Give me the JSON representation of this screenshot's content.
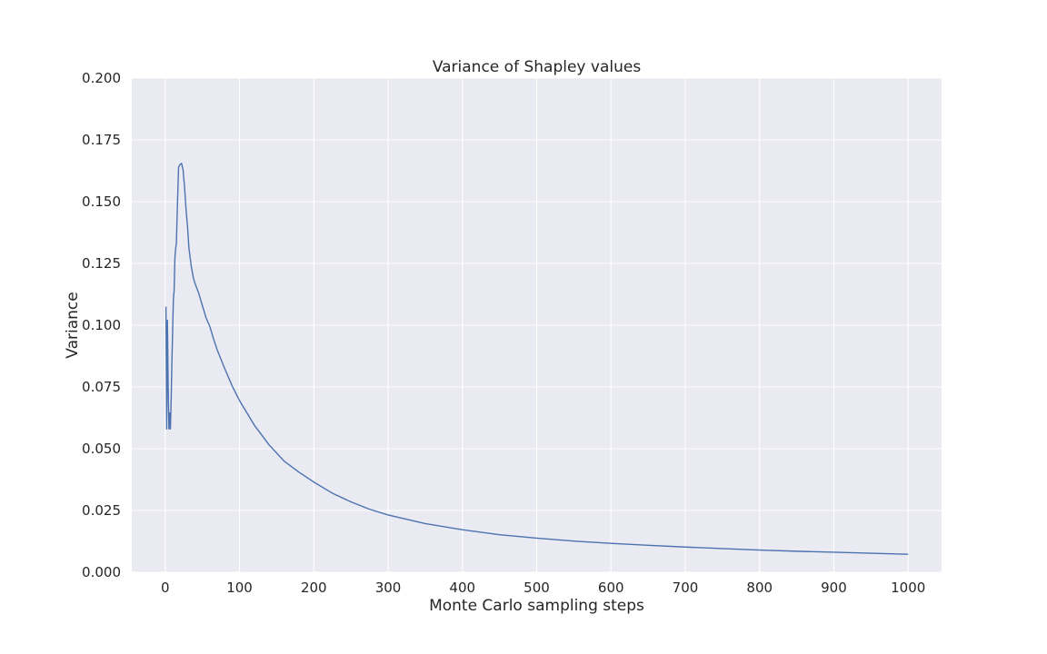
{
  "chart_data": {
    "type": "line",
    "title": "Variance of Shapley values",
    "xlabel": "Monte Carlo sampling steps",
    "ylabel": "Variance",
    "xlim": [
      -45,
      1045
    ],
    "ylim": [
      0,
      0.2
    ],
    "xticks": [
      0,
      100,
      200,
      300,
      400,
      500,
      600,
      700,
      800,
      900,
      1000
    ],
    "yticks": [
      0,
      0.025,
      0.05,
      0.075,
      0.1,
      0.125,
      0.15,
      0.175,
      0.2
    ],
    "ytick_labels": [
      "0.000",
      "0.025",
      "0.050",
      "0.075",
      "0.100",
      "0.125",
      "0.150",
      "0.175",
      "0.200"
    ],
    "grid": true,
    "background": "#eaeaf2",
    "line_color": "#4c72b0",
    "series": [
      {
        "x": [
          1,
          2,
          3,
          4,
          5,
          6,
          7,
          8,
          9,
          10,
          11,
          12,
          13,
          14,
          15,
          16,
          18,
          20,
          22,
          24,
          26,
          28,
          30,
          32,
          35,
          38,
          40,
          45,
          50,
          55,
          60,
          65,
          70,
          80,
          90,
          100,
          120,
          140,
          160,
          180,
          200,
          225,
          250,
          275,
          300,
          350,
          400,
          450,
          500,
          550,
          600,
          650,
          700,
          750,
          800,
          850,
          900,
          950,
          1000
        ],
        "y": [
          0.1075,
          0.058,
          0.102,
          0.075,
          0.058,
          0.0645,
          0.058,
          0.07,
          0.085,
          0.098,
          0.1105,
          0.114,
          0.127,
          0.131,
          0.133,
          0.144,
          0.164,
          0.165,
          0.1655,
          0.163,
          0.156,
          0.147,
          0.14,
          0.131,
          0.124,
          0.119,
          0.117,
          0.113,
          0.108,
          0.103,
          0.0995,
          0.0945,
          0.09,
          0.0825,
          0.0755,
          0.0695,
          0.0595,
          0.0515,
          0.045,
          0.0405,
          0.0365,
          0.032,
          0.0285,
          0.0255,
          0.0232,
          0.0197,
          0.0172,
          0.0152,
          0.0138,
          0.0126,
          0.0117,
          0.0109,
          0.0102,
          0.0096,
          0.009,
          0.0085,
          0.0081,
          0.0077,
          0.0073
        ]
      }
    ]
  }
}
